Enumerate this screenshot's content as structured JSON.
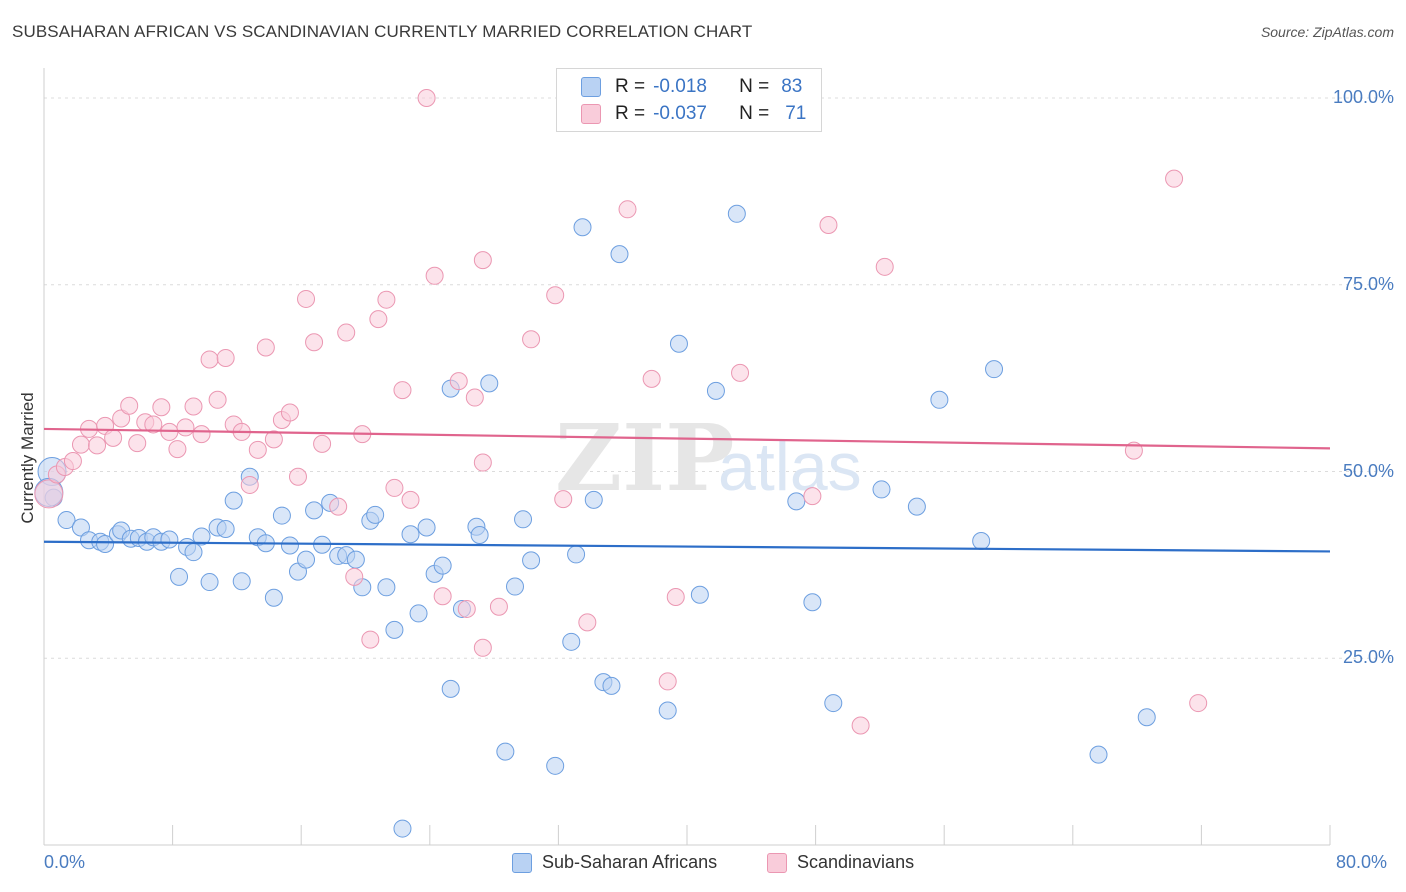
{
  "header": {
    "title": "SUBSAHARAN AFRICAN VS SCANDINAVIAN CURRENTLY MARRIED CORRELATION CHART",
    "source": "Source: ZipAtlas.com"
  },
  "legend_stats": {
    "r_label": "R =",
    "n_label": "N =",
    "series": [
      {
        "r": "-0.018",
        "n": "83"
      },
      {
        "r": "-0.037",
        "n": "71"
      }
    ]
  },
  "colors": {
    "blue_fill": "#b9d2f3",
    "blue_stroke": "#6d9fe0",
    "blue_line": "#2d6ec8",
    "pink_fill": "#f9ccda",
    "pink_stroke": "#eb97b2",
    "pink_line": "#e0648d",
    "tick_text": "#4a7cc0"
  },
  "chart_data": {
    "type": "scatter",
    "title": "SUBSAHARAN AFRICAN VS SCANDINAVIAN CURRENTLY MARRIED CORRELATION CHART",
    "xlabel": "",
    "ylabel": "Currently Married",
    "xlim": [
      0,
      80
    ],
    "ylim": [
      0,
      102
    ],
    "x_tick_labels": [
      "0.0%",
      "80.0%"
    ],
    "y_ticks": [
      25,
      50,
      75,
      100
    ],
    "y_tick_labels": [
      "25.0%",
      "50.0%",
      "75.0%",
      "100.0%"
    ],
    "watermark": {
      "bold": "ZIP",
      "light": "atlas"
    },
    "series": [
      {
        "name": "Sub-Saharan Africans",
        "color": "#6d9fe0",
        "r": -0.018,
        "n": 83,
        "trend": {
          "x": [
            0,
            80
          ],
          "y": [
            40.6,
            39.3
          ]
        },
        "points": [
          [
            0.5,
            50
          ],
          [
            0.6,
            46.5
          ],
          [
            1.4,
            43.5
          ],
          [
            2.3,
            42.5
          ],
          [
            2.8,
            40.8
          ],
          [
            3.5,
            40.6
          ],
          [
            3.8,
            40.3
          ],
          [
            4.6,
            41.6
          ],
          [
            4.8,
            42.1
          ],
          [
            5.4,
            41
          ],
          [
            5.9,
            41.1
          ],
          [
            6.4,
            40.6
          ],
          [
            6.8,
            41.2
          ],
          [
            7.3,
            40.6
          ],
          [
            7.8,
            40.9
          ],
          [
            8.4,
            35.9
          ],
          [
            8.9,
            39.9
          ],
          [
            9.3,
            39.2
          ],
          [
            9.8,
            41.3
          ],
          [
            10.3,
            35.2
          ],
          [
            10.8,
            42.5
          ],
          [
            11.3,
            42.3
          ],
          [
            11.8,
            46.1
          ],
          [
            12.3,
            35.3
          ],
          [
            12.8,
            49.3
          ],
          [
            13.3,
            41.2
          ],
          [
            13.8,
            40.4
          ],
          [
            14.3,
            33.1
          ],
          [
            14.8,
            44.1
          ],
          [
            15.3,
            40.1
          ],
          [
            15.8,
            36.6
          ],
          [
            16.3,
            38.2
          ],
          [
            16.8,
            44.8
          ],
          [
            17.3,
            40.2
          ],
          [
            17.8,
            45.8
          ],
          [
            18.3,
            38.7
          ],
          [
            18.8,
            38.8
          ],
          [
            19.4,
            38.2
          ],
          [
            19.8,
            34.5
          ],
          [
            20.3,
            43.4
          ],
          [
            20.6,
            44.2
          ],
          [
            21.3,
            34.5
          ],
          [
            21.8,
            28.8
          ],
          [
            22.3,
            2.2
          ],
          [
            22.8,
            41.6
          ],
          [
            23.3,
            31
          ],
          [
            23.8,
            42.5
          ],
          [
            24.3,
            36.3
          ],
          [
            24.8,
            37.4
          ],
          [
            25.3,
            61.1
          ],
          [
            25.3,
            20.9
          ],
          [
            26.0,
            31.6
          ],
          [
            26.9,
            42.6
          ],
          [
            27.1,
            41.5
          ],
          [
            27.7,
            61.8
          ],
          [
            28.7,
            12.5
          ],
          [
            29.3,
            34.6
          ],
          [
            29.8,
            43.6
          ],
          [
            30.3,
            38.1
          ],
          [
            31.8,
            10.6
          ],
          [
            32.8,
            27.2
          ],
          [
            33.1,
            38.9
          ],
          [
            33.5,
            82.7
          ],
          [
            34.2,
            46.2
          ],
          [
            34.8,
            21.8
          ],
          [
            35.3,
            21.3
          ],
          [
            35.8,
            79.1
          ],
          [
            38.8,
            18
          ],
          [
            39.5,
            67.1
          ],
          [
            40.8,
            33.5
          ],
          [
            41.8,
            60.8
          ],
          [
            43.1,
            84.5
          ],
          [
            46.8,
            46
          ],
          [
            47.8,
            32.5
          ],
          [
            49.1,
            19
          ],
          [
            52.1,
            47.6
          ],
          [
            54.3,
            45.3
          ],
          [
            55.7,
            59.6
          ],
          [
            58.3,
            40.7
          ],
          [
            59.1,
            63.7
          ],
          [
            65.6,
            12.1
          ],
          [
            68.6,
            17.1
          ],
          [
            0.3,
            47.2
          ]
        ]
      },
      {
        "name": "Scandinavians",
        "color": "#eb97b2",
        "r": -0.037,
        "n": 71,
        "trend": {
          "x": [
            0,
            80
          ],
          "y": [
            55.7,
            53.1
          ]
        },
        "points": [
          [
            0.3,
            47
          ],
          [
            0.8,
            49.6
          ],
          [
            1.3,
            50.6
          ],
          [
            1.8,
            51.4
          ],
          [
            2.3,
            53.6
          ],
          [
            2.8,
            55.7
          ],
          [
            3.3,
            53.5
          ],
          [
            3.8,
            56.1
          ],
          [
            4.3,
            54.5
          ],
          [
            4.8,
            57.1
          ],
          [
            5.3,
            58.8
          ],
          [
            5.8,
            53.8
          ],
          [
            6.3,
            56.6
          ],
          [
            6.8,
            56.3
          ],
          [
            7.3,
            58.6
          ],
          [
            7.8,
            55.3
          ],
          [
            8.3,
            53
          ],
          [
            8.8,
            55.9
          ],
          [
            9.3,
            58.7
          ],
          [
            9.8,
            55
          ],
          [
            10.3,
            65
          ],
          [
            10.8,
            59.6
          ],
          [
            11.3,
            65.2
          ],
          [
            11.8,
            56.3
          ],
          [
            12.3,
            55.3
          ],
          [
            12.8,
            48.2
          ],
          [
            13.3,
            52.9
          ],
          [
            13.8,
            66.6
          ],
          [
            14.3,
            54.3
          ],
          [
            14.8,
            56.9
          ],
          [
            15.3,
            57.9
          ],
          [
            15.8,
            49.3
          ],
          [
            16.3,
            73.1
          ],
          [
            16.8,
            67.3
          ],
          [
            17.3,
            53.7
          ],
          [
            18.3,
            45.3
          ],
          [
            18.8,
            68.6
          ],
          [
            19.3,
            35.9
          ],
          [
            19.8,
            55
          ],
          [
            20.3,
            27.5
          ],
          [
            20.8,
            70.4
          ],
          [
            21.3,
            73
          ],
          [
            21.8,
            47.8
          ],
          [
            22.3,
            60.9
          ],
          [
            22.8,
            46.2
          ],
          [
            23.8,
            100
          ],
          [
            24.3,
            76.2
          ],
          [
            24.8,
            33.3
          ],
          [
            25.8,
            62.1
          ],
          [
            26.3,
            31.6
          ],
          [
            26.8,
            59.9
          ],
          [
            27.3,
            26.4
          ],
          [
            27.3,
            78.3
          ],
          [
            27.3,
            51.2
          ],
          [
            28.3,
            31.9
          ],
          [
            30.3,
            67.7
          ],
          [
            31.8,
            73.6
          ],
          [
            32.3,
            46.3
          ],
          [
            33.8,
            29.8
          ],
          [
            36.3,
            85.1
          ],
          [
            37.8,
            62.4
          ],
          [
            38.8,
            21.9
          ],
          [
            39.3,
            33.2
          ],
          [
            43.3,
            63.2
          ],
          [
            47.8,
            46.7
          ],
          [
            48.8,
            83
          ],
          [
            50.8,
            16
          ],
          [
            52.3,
            77.4
          ],
          [
            67.8,
            52.8
          ],
          [
            70.3,
            89.2
          ],
          [
            71.8,
            19
          ]
        ]
      }
    ]
  },
  "bottom_legend": {
    "items": [
      "Sub-Saharan Africans",
      "Scandinavians"
    ]
  }
}
